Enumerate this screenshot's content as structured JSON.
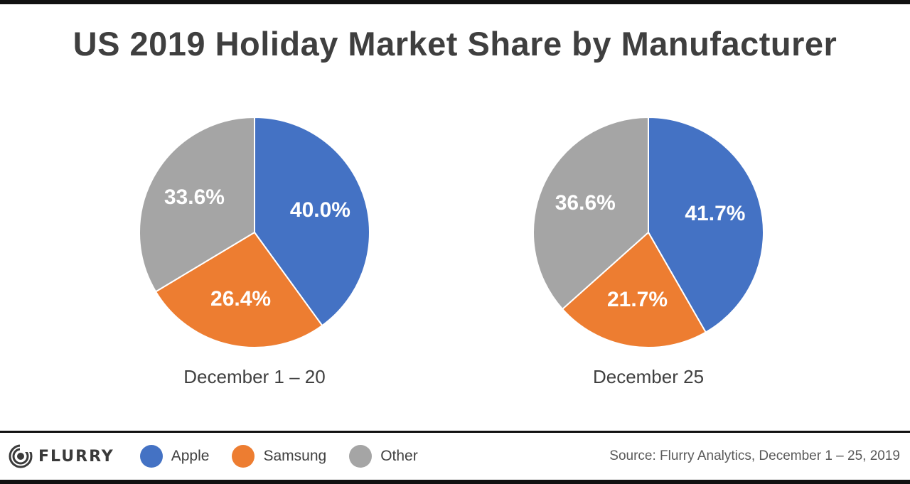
{
  "title": "US 2019 Holiday Market Share by Manufacturer",
  "brand": {
    "logo_text": "FLURRY"
  },
  "source": "Source: Flurry Analytics, December 1 – 25, 2019",
  "colors": {
    "Apple": "#4472c4",
    "Samsung": "#ed7d31",
    "Other": "#a5a5a5"
  },
  "legend": [
    {
      "label": "Apple",
      "color": "#4472c4"
    },
    {
      "label": "Samsung",
      "color": "#ed7d31"
    },
    {
      "label": "Other",
      "color": "#a5a5a5"
    }
  ],
  "chart_data": [
    {
      "type": "pie",
      "title": "December 1 – 20",
      "categories": [
        "Apple",
        "Samsung",
        "Other"
      ],
      "values": [
        40.0,
        26.4,
        33.6
      ],
      "labels": [
        "40.0%",
        "26.4%",
        "33.6%"
      ],
      "legend": "bottom"
    },
    {
      "type": "pie",
      "title": "December 25",
      "categories": [
        "Apple",
        "Samsung",
        "Other"
      ],
      "values": [
        41.7,
        21.7,
        36.6
      ],
      "labels": [
        "41.7%",
        "21.7%",
        "36.6%"
      ],
      "legend": "bottom"
    }
  ]
}
